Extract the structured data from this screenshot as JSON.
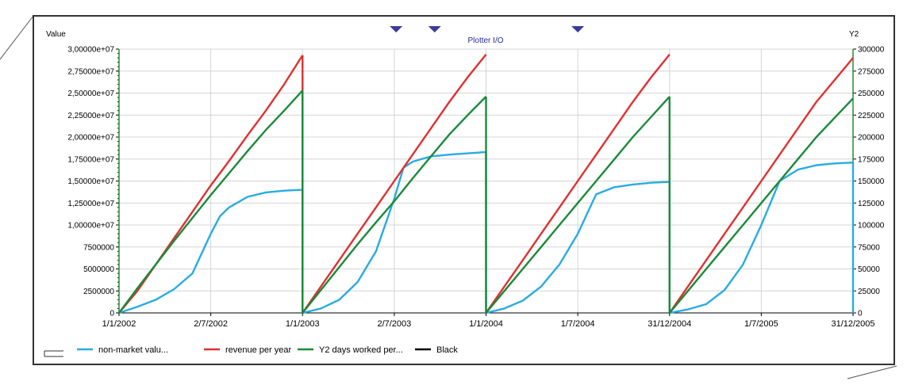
{
  "chart_data": {
    "type": "line",
    "title": "Plotter I/O",
    "ylabel_left": "Value",
    "ylabel_right": "Y2",
    "ylim_left": [
      0,
      30000000
    ],
    "ylim_right": [
      0,
      300000
    ],
    "x_tick_labels": [
      "1/1/2002",
      "2/7/2002",
      "1/1/2003",
      "2/7/2003",
      "1/1/2004",
      "1/7/2004",
      "31/12/2004",
      "1/7/2005",
      "31/12/2005"
    ],
    "y_left_tick_labels": [
      "0",
      "2500000",
      "5000000",
      "7500000",
      "1,00000e+07",
      "1,25000e+07",
      "1,50000e+07",
      "1,75000e+07",
      "2,00000e+07",
      "2,25000e+07",
      "2,50000e+07",
      "2,75000e+07",
      "3,00000e+07"
    ],
    "y_right_tick_labels": [
      "0",
      "25000",
      "50000",
      "75000",
      "100000",
      "125000",
      "150000",
      "175000",
      "200000",
      "225000",
      "250000",
      "275000",
      "300000"
    ],
    "grid": true,
    "legend_position": "bottom-left",
    "series": [
      {
        "name": "non-market valu...",
        "color": "#29abe2",
        "segments": [
          [
            [
              0,
              0
            ],
            [
              0.1,
              700000
            ],
            [
              0.2,
              1500000
            ],
            [
              0.3,
              2700000
            ],
            [
              0.4,
              4500000
            ],
            [
              0.5,
              9000000
            ],
            [
              0.55,
              11000000
            ],
            [
              0.6,
              12000000
            ],
            [
              0.7,
              13200000
            ],
            [
              0.8,
              13700000
            ],
            [
              0.9,
              13900000
            ],
            [
              1.0,
              14000000
            ]
          ],
          [
            [
              1.0,
              0
            ],
            [
              1.1,
              500000
            ],
            [
              1.2,
              1500000
            ],
            [
              1.3,
              3500000
            ],
            [
              1.4,
              7000000
            ],
            [
              1.5,
              13000000
            ],
            [
              1.55,
              16500000
            ],
            [
              1.6,
              17200000
            ],
            [
              1.7,
              17800000
            ],
            [
              1.8,
              18000000
            ],
            [
              2.0,
              18300000
            ]
          ],
          [
            [
              2.0,
              0
            ],
            [
              2.1,
              500000
            ],
            [
              2.2,
              1400000
            ],
            [
              2.3,
              3000000
            ],
            [
              2.4,
              5500000
            ],
            [
              2.5,
              9000000
            ],
            [
              2.6,
              13500000
            ],
            [
              2.7,
              14300000
            ],
            [
              2.8,
              14600000
            ],
            [
              2.9,
              14800000
            ],
            [
              3.0,
              14900000
            ]
          ],
          [
            [
              3.0,
              0
            ],
            [
              3.1,
              400000
            ],
            [
              3.2,
              1000000
            ],
            [
              3.3,
              2600000
            ],
            [
              3.4,
              5500000
            ],
            [
              3.5,
              10000000
            ],
            [
              3.6,
              15000000
            ],
            [
              3.7,
              16300000
            ],
            [
              3.8,
              16800000
            ],
            [
              3.9,
              17000000
            ],
            [
              4.0,
              17100000
            ]
          ]
        ],
        "drops": [
          1.0,
          2.0,
          3.0,
          4.0
        ]
      },
      {
        "name": "revenue per year",
        "color": "#e03030",
        "segments": [
          [
            [
              0,
              0
            ],
            [
              0.1,
              2500000
            ],
            [
              0.2,
              5500000
            ],
            [
              0.3,
              8500000
            ],
            [
              0.4,
              11500000
            ],
            [
              0.5,
              14500000
            ],
            [
              0.6,
              17300000
            ],
            [
              0.7,
              20200000
            ],
            [
              0.8,
              23000000
            ],
            [
              0.9,
              26000000
            ],
            [
              1.0,
              29300000
            ]
          ],
          [
            [
              1.0,
              0
            ],
            [
              1.1,
              3000000
            ],
            [
              1.2,
              6000000
            ],
            [
              1.3,
              9000000
            ],
            [
              1.4,
              12000000
            ],
            [
              1.5,
              15000000
            ],
            [
              1.6,
              18000000
            ],
            [
              1.7,
              21000000
            ],
            [
              1.8,
              24000000
            ],
            [
              1.9,
              26800000
            ],
            [
              2.0,
              29400000
            ]
          ],
          [
            [
              2.0,
              0
            ],
            [
              2.1,
              3000000
            ],
            [
              2.2,
              6000000
            ],
            [
              2.3,
              9000000
            ],
            [
              2.4,
              12000000
            ],
            [
              2.5,
              15000000
            ],
            [
              2.6,
              18000000
            ],
            [
              2.7,
              21000000
            ],
            [
              2.8,
              24000000
            ],
            [
              2.9,
              26800000
            ],
            [
              3.0,
              29400000
            ]
          ],
          [
            [
              3.0,
              0
            ],
            [
              3.1,
              3000000
            ],
            [
              3.2,
              6000000
            ],
            [
              3.3,
              9000000
            ],
            [
              3.4,
              12000000
            ],
            [
              3.5,
              15000000
            ],
            [
              3.6,
              18000000
            ],
            [
              3.7,
              21000000
            ],
            [
              3.8,
              24000000
            ],
            [
              3.9,
              26500000
            ],
            [
              4.0,
              29000000
            ]
          ]
        ],
        "drops": [
          1.0
        ]
      },
      {
        "name": "Y2 days worked per...",
        "color": "#1a8a3a",
        "segments": [
          [
            [
              0,
              0
            ],
            [
              0.1,
              2800000
            ],
            [
              0.2,
              5500000
            ],
            [
              0.3,
              8200000
            ],
            [
              0.4,
              10800000
            ],
            [
              0.5,
              13400000
            ],
            [
              0.6,
              15900000
            ],
            [
              0.7,
              18400000
            ],
            [
              0.8,
              20800000
            ],
            [
              0.9,
              23000000
            ],
            [
              1.0,
              25300000
            ]
          ],
          [
            [
              1.0,
              0
            ],
            [
              1.1,
              2600000
            ],
            [
              1.2,
              5200000
            ],
            [
              1.3,
              7800000
            ],
            [
              1.4,
              10300000
            ],
            [
              1.5,
              12700000
            ],
            [
              1.6,
              15300000
            ],
            [
              1.7,
              17800000
            ],
            [
              1.8,
              20300000
            ],
            [
              1.9,
              22500000
            ],
            [
              2.0,
              24600000
            ]
          ],
          [
            [
              2.0,
              0
            ],
            [
              2.1,
              2500000
            ],
            [
              2.2,
              5000000
            ],
            [
              2.3,
              7500000
            ],
            [
              2.4,
              10000000
            ],
            [
              2.5,
              12500000
            ],
            [
              2.6,
              15000000
            ],
            [
              2.7,
              17500000
            ],
            [
              2.8,
              20000000
            ],
            [
              2.9,
              22300000
            ],
            [
              3.0,
              24600000
            ]
          ],
          [
            [
              3.0,
              0
            ],
            [
              3.1,
              2500000
            ],
            [
              3.2,
              5000000
            ],
            [
              3.3,
              7500000
            ],
            [
              3.4,
              10000000
            ],
            [
              3.5,
              12500000
            ],
            [
              3.6,
              15000000
            ],
            [
              3.7,
              17500000
            ],
            [
              3.8,
              20000000
            ],
            [
              3.9,
              22200000
            ],
            [
              4.0,
              24400000
            ]
          ]
        ],
        "drops": [
          1.0,
          2.0,
          3.0
        ]
      },
      {
        "name": "Black",
        "color": "#000000",
        "segments": [],
        "drops": []
      }
    ],
    "markers": [
      1.51,
      1.72,
      2.5
    ]
  },
  "colors": {
    "title": "#2a2a9a",
    "marker": "#3a3aa0",
    "grid": "#d4d4d4",
    "axis": "#000000",
    "frame": "#333333"
  }
}
